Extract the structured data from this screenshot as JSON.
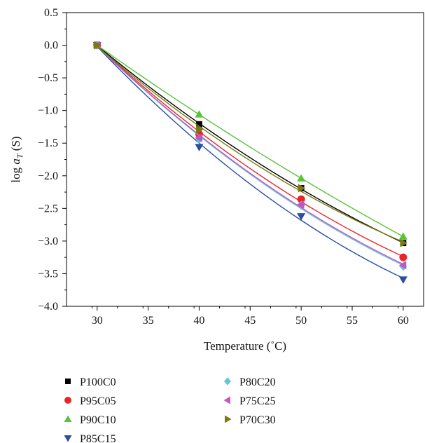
{
  "chart_data": {
    "type": "scatter",
    "xlabel": "Temperature (˚C)",
    "ylabel_prefix": "log",
    "ylabel_var": "a",
    "ylabel_sub": "T",
    "ylabel_suffix": " (S)",
    "xlim": [
      27,
      62
    ],
    "ylim": [
      -4.0,
      0.5
    ],
    "x_ticks": [
      30,
      35,
      40,
      45,
      50,
      55,
      60
    ],
    "y_ticks": [
      0.5,
      0.0,
      -0.5,
      -1.0,
      -1.5,
      -2.0,
      -2.5,
      -3.0,
      -3.5,
      -4.0
    ],
    "x_tick_labels": [
      "30",
      "35",
      "40",
      "45",
      "50",
      "55",
      "60"
    ],
    "y_tick_labels": [
      "0.5",
      "0.0",
      "−0.5",
      "−1.0",
      "−1.5",
      "−2.0",
      "−2.5",
      "−3.0",
      "−3.5",
      "−4.0"
    ],
    "grid": false,
    "legend_position": "bottom",
    "x": [
      30,
      40,
      50,
      60
    ],
    "series": [
      {
        "name": "P100C0",
        "values": [
          0.0,
          -1.21,
          -2.19,
          -3.03
        ],
        "color": "#000000",
        "marker": "square"
      },
      {
        "name": "P95C05",
        "values": [
          0.0,
          -1.36,
          -2.36,
          -3.25
        ],
        "color": "#e8262a",
        "marker": "circle"
      },
      {
        "name": "P90C10",
        "values": [
          0.0,
          -1.06,
          -2.04,
          -2.93
        ],
        "color": "#5cc23c",
        "marker": "triangle-up"
      },
      {
        "name": "P85C15",
        "values": [
          0.0,
          -1.56,
          -2.62,
          -3.59
        ],
        "color": "#2b4da3",
        "marker": "triangle-down"
      },
      {
        "name": "P80C20",
        "values": [
          0.0,
          -1.44,
          -2.45,
          -3.39
        ],
        "color": "#5ec8d6",
        "marker": "diamond"
      },
      {
        "name": "P75C25",
        "values": [
          0.0,
          -1.42,
          -2.44,
          -3.37
        ],
        "color": "#c256c2",
        "marker": "triangle-left"
      },
      {
        "name": "P70C30",
        "values": [
          0.0,
          -1.29,
          -2.19,
          -3.03
        ],
        "color": "#7a7a10",
        "marker": "triangle-right"
      }
    ]
  }
}
